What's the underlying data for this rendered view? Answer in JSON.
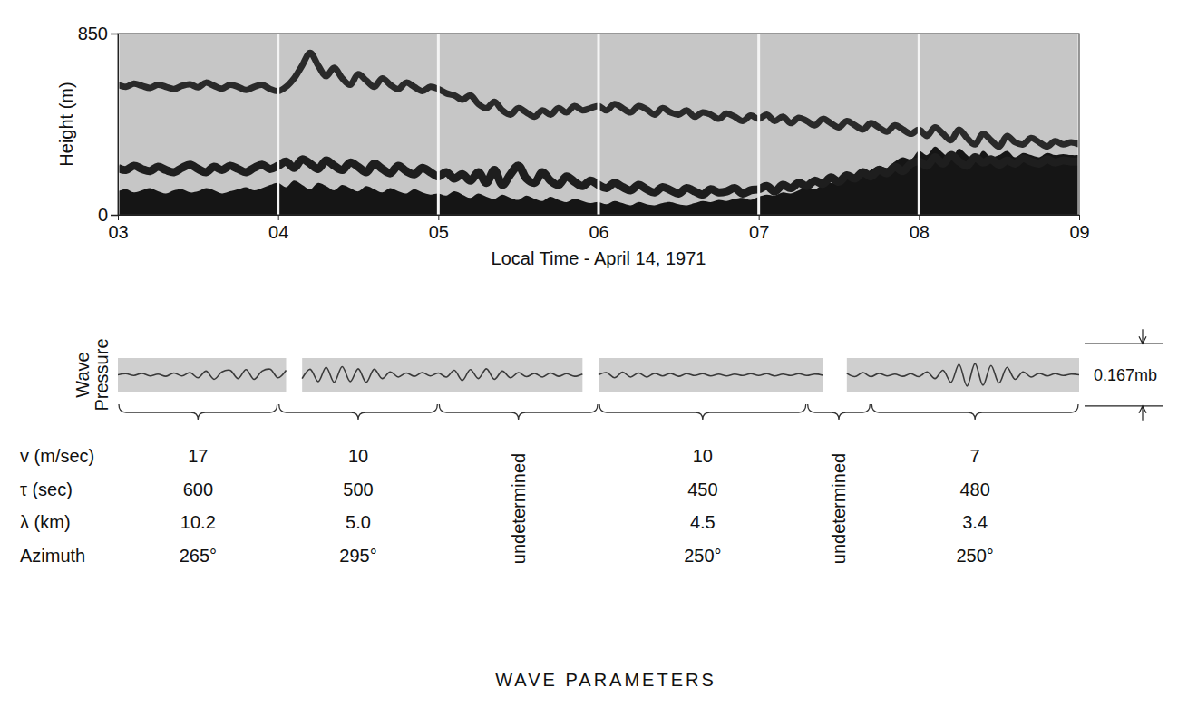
{
  "chart_data": [
    {
      "type": "line",
      "xlabel": "Local Time - April 14, 1971",
      "ylabel": "Height (m)",
      "xlim": [
        3,
        9
      ],
      "xticks": [
        {
          "value": 3,
          "label": "03"
        },
        {
          "value": 4,
          "label": "04"
        },
        {
          "value": 5,
          "label": "05"
        },
        {
          "value": 6,
          "label": "06"
        },
        {
          "value": 7,
          "label": "07"
        },
        {
          "value": 8,
          "label": "08"
        },
        {
          "value": 9,
          "label": "09"
        }
      ],
      "ylim": [
        0,
        850
      ],
      "yticks": [
        0,
        850
      ],
      "grid": true,
      "x": [
        3,
        3.05,
        3.1,
        3.15,
        3.2,
        3.25,
        3.3,
        3.35,
        3.4,
        3.45,
        3.5,
        3.55,
        3.6,
        3.65,
        3.7,
        3.75,
        3.8,
        3.85,
        3.9,
        3.95,
        4,
        4.05,
        4.1,
        4.15,
        4.2,
        4.25,
        4.3,
        4.35,
        4.4,
        4.45,
        4.5,
        4.55,
        4.6,
        4.65,
        4.7,
        4.75,
        4.8,
        4.85,
        4.9,
        4.95,
        5,
        5.05,
        5.1,
        5.15,
        5.2,
        5.25,
        5.3,
        5.35,
        5.4,
        5.45,
        5.5,
        5.55,
        5.6,
        5.65,
        5.7,
        5.75,
        5.8,
        5.85,
        5.9,
        5.95,
        6,
        6.05,
        6.1,
        6.15,
        6.2,
        6.25,
        6.3,
        6.35,
        6.4,
        6.45,
        6.5,
        6.55,
        6.6,
        6.65,
        6.7,
        6.75,
        6.8,
        6.85,
        6.9,
        6.95,
        7,
        7.05,
        7.1,
        7.15,
        7.2,
        7.25,
        7.3,
        7.35,
        7.4,
        7.45,
        7.5,
        7.55,
        7.6,
        7.65,
        7.7,
        7.75,
        7.8,
        7.85,
        7.9,
        7.95,
        8,
        8.05,
        8.1,
        8.15,
        8.2,
        8.25,
        8.3,
        8.35,
        8.4,
        8.45,
        8.5,
        8.55,
        8.6,
        8.65,
        8.7,
        8.75,
        8.8,
        8.85,
        8.9,
        8.95,
        9
      ],
      "series": [
        {
          "type": "area",
          "color": "#151515",
          "values": [
            110,
            120,
            105,
            115,
            125,
            110,
            100,
            115,
            120,
            105,
            110,
            125,
            115,
            100,
            110,
            120,
            130,
            115,
            125,
            140,
            150,
            130,
            160,
            140,
            120,
            150,
            135,
            115,
            140,
            125,
            110,
            135,
            120,
            105,
            125,
            110,
            100,
            120,
            105,
            95,
            100,
            90,
            110,
            95,
            80,
            100,
            85,
            75,
            95,
            80,
            70,
            90,
            75,
            65,
            85,
            70,
            60,
            75,
            65,
            55,
            60,
            50,
            65,
            55,
            45,
            60,
            50,
            45,
            55,
            60,
            50,
            45,
            55,
            65,
            60,
            70,
            65,
            75,
            80,
            70,
            85,
            95,
            90,
            105,
            100,
            115,
            125,
            120,
            140,
            150,
            145,
            170,
            190,
            180,
            210,
            230,
            220,
            250,
            270,
            260,
            300,
            280,
            320,
            290,
            260,
            310,
            280,
            250,
            300,
            270,
            280,
            300,
            270,
            290,
            280,
            270,
            290,
            280,
            285,
            280,
            280
          ]
        },
        {
          "type": "line",
          "color": "#1e1e1e",
          "values": [
            220,
            210,
            230,
            215,
            205,
            225,
            210,
            200,
            220,
            235,
            215,
            200,
            225,
            210,
            230,
            215,
            200,
            220,
            235,
            215,
            230,
            250,
            220,
            260,
            240,
            215,
            255,
            230,
            210,
            245,
            225,
            200,
            240,
            215,
            195,
            230,
            205,
            190,
            220,
            200,
            180,
            200,
            170,
            190,
            160,
            200,
            150,
            210,
            140,
            190,
            230,
            170,
            150,
            200,
            160,
            140,
            180,
            155,
            135,
            160,
            140,
            125,
            150,
            130,
            115,
            140,
            120,
            105,
            130,
            115,
            100,
            125,
            110,
            95,
            120,
            105,
            110,
            125,
            100,
            115,
            120,
            135,
            110,
            140,
            125,
            150,
            135,
            160,
            145,
            175,
            155,
            185,
            170,
            200,
            180,
            210,
            195,
            225,
            205,
            240,
            250,
            230,
            270,
            240,
            280,
            250,
            230,
            270,
            245,
            260,
            235,
            255,
            240,
            265,
            250,
            240,
            260,
            245,
            255,
            250,
            250
          ]
        },
        {
          "type": "line",
          "color": "#2a2a2a",
          "values": [
            610,
            600,
            615,
            605,
            595,
            610,
            600,
            590,
            605,
            612,
            598,
            620,
            605,
            592,
            610,
            600,
            585,
            600,
            610,
            590,
            580,
            600,
            640,
            700,
            760,
            700,
            650,
            690,
            640,
            610,
            660,
            630,
            600,
            640,
            610,
            590,
            620,
            600,
            580,
            600,
            590,
            570,
            560,
            540,
            560,
            520,
            500,
            530,
            490,
            470,
            500,
            480,
            460,
            490,
            470,
            500,
            480,
            510,
            490,
            500,
            510,
            490,
            520,
            500,
            480,
            510,
            495,
            470,
            500,
            480,
            470,
            490,
            460,
            480,
            470,
            450,
            475,
            460,
            440,
            465,
            450,
            470,
            440,
            460,
            430,
            455,
            440,
            420,
            450,
            430,
            410,
            440,
            420,
            400,
            430,
            410,
            390,
            420,
            400,
            380,
            400,
            370,
            410,
            380,
            350,
            400,
            360,
            330,
            380,
            350,
            320,
            370,
            340,
            330,
            360,
            340,
            320,
            345,
            330,
            340,
            330
          ]
        }
      ]
    },
    {
      "type": "line",
      "ylabel": "Wave Pressure",
      "xlim": [
        3,
        9
      ],
      "ylim": [
        -0.045,
        0.045
      ],
      "tick_labels": false,
      "segments": [
        [
          3,
          4.05
        ],
        [
          4.15,
          5.9
        ],
        [
          6,
          7.4
        ],
        [
          7.55,
          9
        ]
      ],
      "scale_bar": {
        "value": 0.167,
        "label": "0.167mb"
      },
      "x": [
        3,
        3.05,
        3.1,
        3.15,
        3.2,
        3.25,
        3.3,
        3.35,
        3.4,
        3.45,
        3.5,
        3.55,
        3.6,
        3.65,
        3.7,
        3.75,
        3.8,
        3.85,
        3.9,
        3.95,
        4,
        4.05,
        4.1,
        4.15,
        4.2,
        4.25,
        4.3,
        4.35,
        4.4,
        4.45,
        4.5,
        4.55,
        4.6,
        4.65,
        4.7,
        4.75,
        4.8,
        4.85,
        4.9,
        4.95,
        5,
        5.05,
        5.1,
        5.15,
        5.2,
        5.25,
        5.3,
        5.35,
        5.4,
        5.45,
        5.5,
        5.55,
        5.6,
        5.65,
        5.7,
        5.75,
        5.8,
        5.85,
        5.9,
        5.95,
        6,
        6.05,
        6.1,
        6.15,
        6.2,
        6.25,
        6.3,
        6.35,
        6.4,
        6.45,
        6.5,
        6.55,
        6.6,
        6.65,
        6.7,
        6.75,
        6.8,
        6.85,
        6.9,
        6.95,
        7,
        7.05,
        7.1,
        7.15,
        7.2,
        7.25,
        7.3,
        7.35,
        7.4,
        7.45,
        7.5,
        7.55,
        7.6,
        7.65,
        7.7,
        7.75,
        7.8,
        7.85,
        7.9,
        7.95,
        8,
        8.05,
        8.1,
        8.15,
        8.2,
        8.25,
        8.3,
        8.35,
        8.4,
        8.45,
        8.5,
        8.55,
        8.6,
        8.65,
        8.7,
        8.75,
        8.8,
        8.85,
        8.9,
        8.95,
        9
      ],
      "series": [
        {
          "color": "#3a3a3a",
          "values": [
            0,
            0.003,
            -0.002,
            0.004,
            -0.003,
            0.002,
            -0.004,
            0.005,
            -0.003,
            0.006,
            -0.008,
            0.01,
            -0.012,
            0.008,
            0.012,
            -0.01,
            0.014,
            -0.012,
            0.01,
            0.015,
            -0.008,
            0.012,
            null,
            -0.01,
            0.015,
            -0.018,
            0.02,
            -0.02,
            0.022,
            -0.018,
            0.016,
            -0.02,
            0.015,
            -0.01,
            0.008,
            -0.006,
            0.005,
            -0.004,
            0.006,
            -0.003,
            0.005,
            -0.006,
            0.012,
            -0.015,
            0.014,
            -0.01,
            0.016,
            -0.012,
            0.01,
            -0.008,
            0.006,
            -0.005,
            0.004,
            -0.006,
            0.005,
            -0.004,
            0.003,
            -0.004,
            0.002,
            null,
            0,
            0.006,
            -0.008,
            0.007,
            -0.006,
            0.005,
            -0.006,
            0.004,
            -0.003,
            0.004,
            -0.004,
            0.003,
            -0.002,
            0.003,
            -0.003,
            0.002,
            -0.003,
            0.002,
            -0.002,
            0.003,
            -0.002,
            0.003,
            -0.003,
            0.002,
            -0.002,
            0.003,
            -0.002,
            0.002,
            -0.001,
            null,
            null,
            0.004,
            -0.005,
            0.006,
            -0.005,
            0.004,
            -0.003,
            0.002,
            -0.004,
            0.003,
            -0.005,
            0.008,
            -0.01,
            0.012,
            -0.02,
            0.028,
            -0.03,
            0.03,
            -0.028,
            0.025,
            -0.022,
            0.02,
            -0.012,
            0.008,
            -0.006,
            0.004,
            -0.003,
            0.003,
            -0.002,
            0.002,
            0
          ]
        }
      ]
    }
  ],
  "wave_parameters": {
    "title": "WAVE PARAMETERS",
    "row_labels": [
      "v (m/sec)",
      "τ (sec)",
      "λ (km)",
      "Azimuth"
    ],
    "columns": [
      {
        "start": 3,
        "end": 4,
        "values": [
          "17",
          "600",
          "10.2",
          "265°"
        ]
      },
      {
        "start": 4,
        "end": 5,
        "values": [
          "10",
          "500",
          "5.0",
          "295°"
        ]
      },
      {
        "start": 5,
        "end": 6,
        "note": "undetermined"
      },
      {
        "start": 6,
        "end": 7.3,
        "values": [
          "10",
          "450",
          "4.5",
          "250°"
        ]
      },
      {
        "start": 7.3,
        "end": 7.7,
        "note": "undetermined"
      },
      {
        "start": 7.7,
        "end": 9,
        "values": [
          "7",
          "480",
          "3.4",
          "250°"
        ]
      }
    ]
  }
}
